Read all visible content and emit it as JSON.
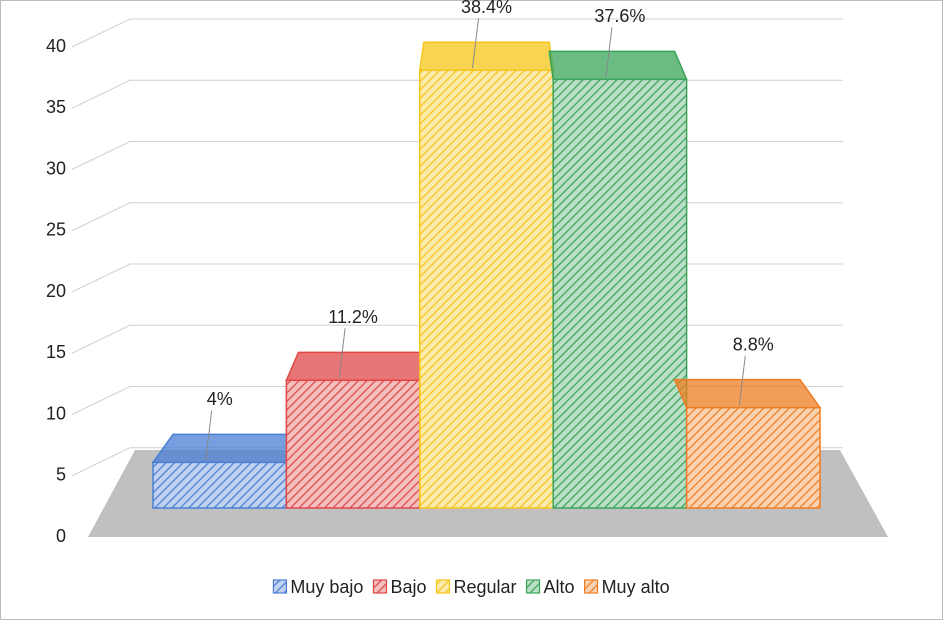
{
  "chart_data": {
    "type": "bar3d",
    "series": [
      {
        "name": "Muy bajo",
        "color": "#4a7fd4",
        "values": [
          4
        ],
        "value_labels": [
          "4%"
        ]
      },
      {
        "name": "Bajo",
        "color": "#e04848",
        "values": [
          11.2
        ],
        "value_labels": [
          "11.2%"
        ]
      },
      {
        "name": "Regular",
        "color": "#f5c518",
        "values": [
          38.4
        ],
        "value_labels": [
          "38.4%"
        ]
      },
      {
        "name": "Alto",
        "color": "#3aa45a",
        "values": [
          37.6
        ],
        "value_labels": [
          "37.6%"
        ]
      },
      {
        "name": "Muy alto",
        "color": "#ee7d22",
        "values": [
          8.8
        ],
        "value_labels": [
          "8.8%"
        ]
      }
    ],
    "ylim": [
      0,
      40
    ],
    "yticks": [
      0,
      5,
      10,
      15,
      20,
      25,
      30,
      35,
      40
    ],
    "grid": true,
    "legend": "bottom"
  }
}
